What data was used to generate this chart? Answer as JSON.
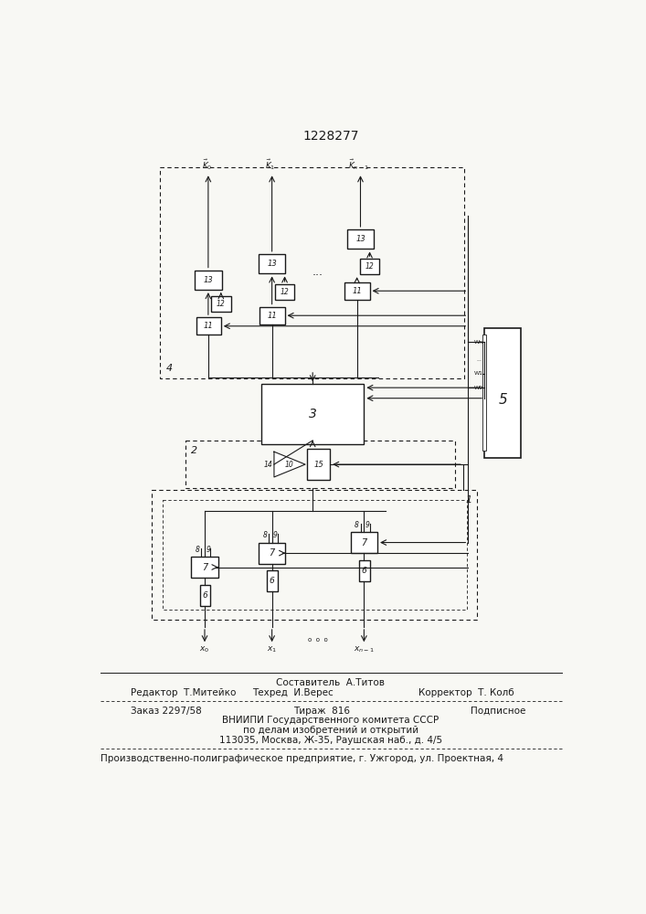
{
  "title": "1228277",
  "bg": "#f8f8f4",
  "lc": "#1a1a1a",
  "footer": {
    "sestavitel": "Составитель  А.Титов",
    "redaktor": "Редактор  Т.Митейко",
    "tehred": "Техред  И.Верес",
    "korrektor": "Корректор  Т. Колб",
    "zakaz": "Заказ 2297/58",
    "tirazh": "Тираж  816",
    "podpisnoe": "Подписное",
    "vniippi": "ВНИИПИ Государственного комитета СССР",
    "po_delam": "по делам изобретений и открытий",
    "address": "113035, Москва, Ж-35, Раушская наб., д. 4/5",
    "predpriyatie": "Производственно-полиграфическое предприятие, г. Ужгород, ул. Проектная, 4"
  }
}
